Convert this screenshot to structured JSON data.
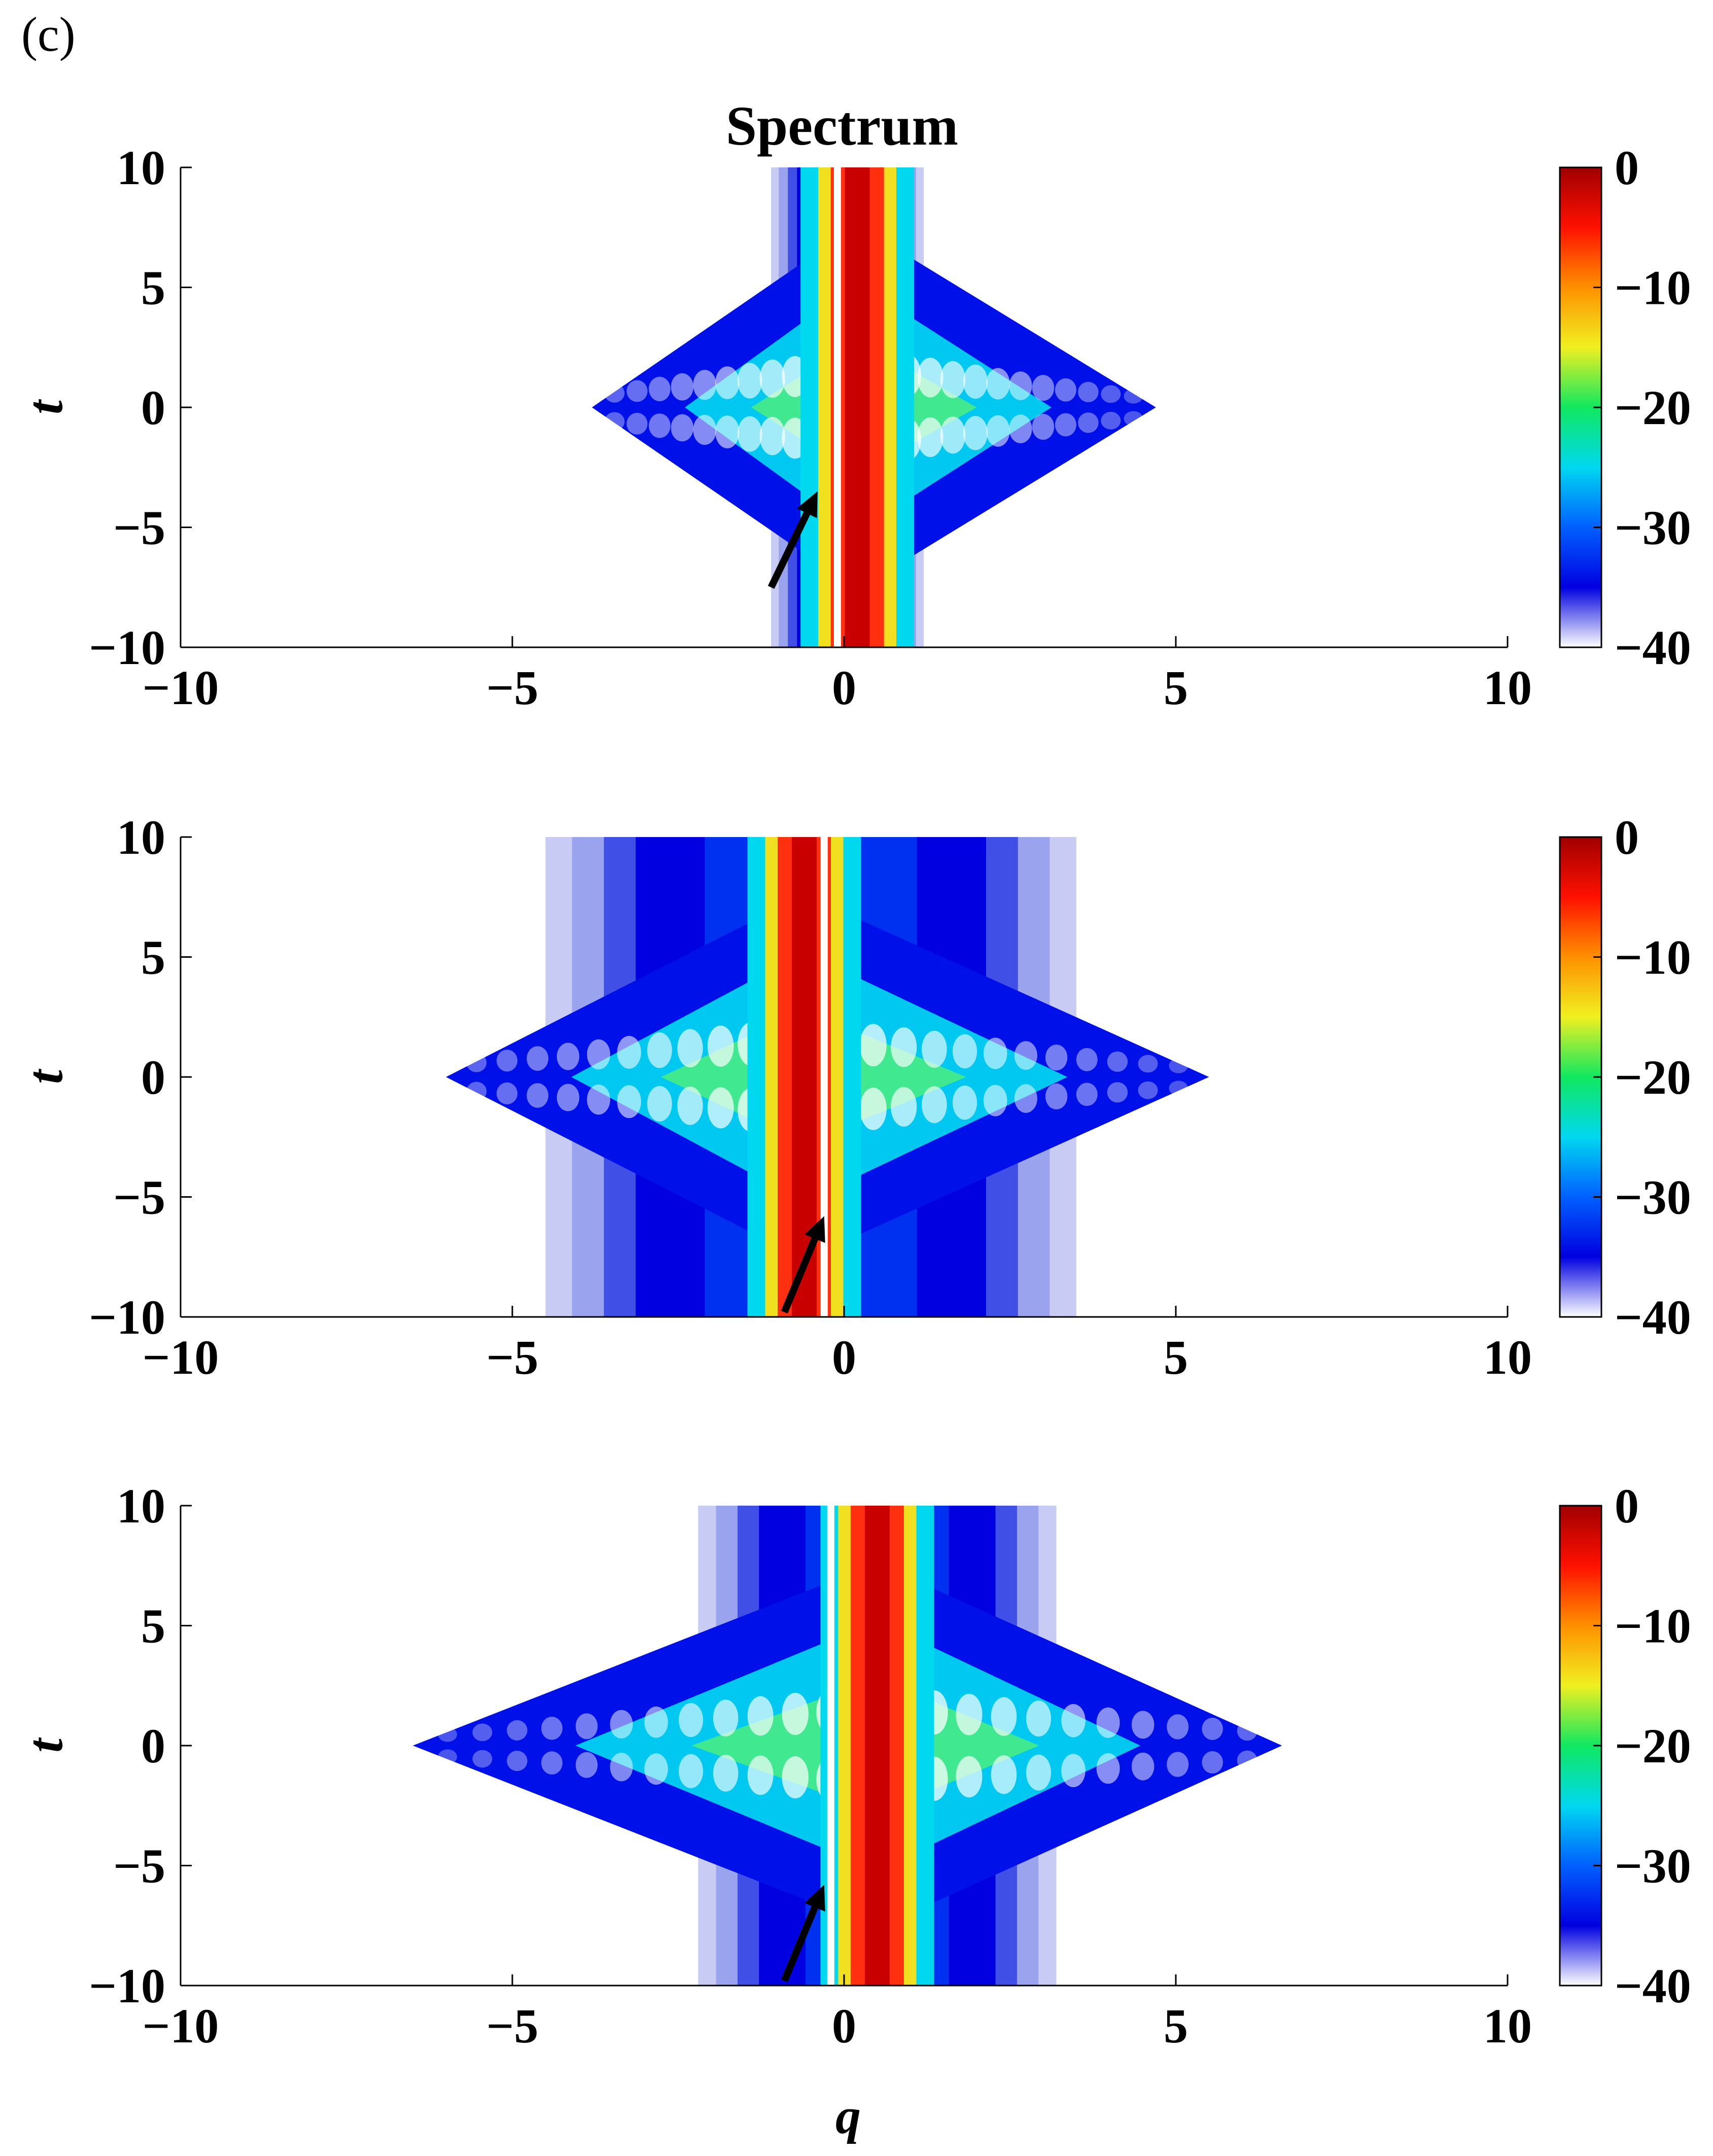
{
  "panel_label": "(c)",
  "title": "Spectrum",
  "colors": {
    "colormap": [
      "#ffffff",
      "#0000e0",
      "#0060ff",
      "#00d8f0",
      "#10e860",
      "#f0f020",
      "#ff9000",
      "#ff1000",
      "#a00000"
    ],
    "arrow": "#000000",
    "axis": "#000000"
  },
  "chart_data": [
    {
      "type": "heatmap",
      "title": "Spectrum",
      "xlabel": "",
      "ylabel": "t",
      "xlim": [
        -10,
        10
      ],
      "ylim": [
        -10,
        10
      ],
      "xticks": [
        "−10",
        "−5",
        "0",
        "5",
        "10"
      ],
      "yticks": [
        "10",
        "5",
        "0",
        "−5",
        "−10"
      ],
      "colorbar": {
        "range": [
          -40,
          0
        ],
        "ticks": [
          "0",
          "−10",
          "−20",
          "−30",
          "−40"
        ]
      },
      "features": {
        "central_band_q": 0.2,
        "gap_q": -0.1,
        "background_band_q": [
          -1.1,
          1.2
        ],
        "spread_at_t0_q": [
          -3.8,
          4.7
        ],
        "peak_t": 0
      },
      "arrow": {
        "from": [
          -1.1,
          -7.5
        ],
        "to": [
          -0.4,
          -3.5
        ]
      }
    },
    {
      "type": "heatmap",
      "xlabel": "",
      "ylabel": "t",
      "xlim": [
        -10,
        10
      ],
      "ylim": [
        -10,
        10
      ],
      "xticks": [
        "−10",
        "−5",
        "0",
        "5",
        "10"
      ],
      "yticks": [
        "10",
        "5",
        "0",
        "−5",
        "−10"
      ],
      "colorbar": {
        "range": [
          -40,
          0
        ],
        "ticks": [
          "0",
          "−10",
          "−20",
          "−30",
          "−40"
        ]
      },
      "features": {
        "central_band_q": -0.6,
        "gap_q": -0.3,
        "background_band_q": [
          -4.5,
          3.5
        ],
        "spread_at_t0_q": [
          -6.0,
          5.5
        ],
        "peak_t": 0
      },
      "arrow": {
        "from": [
          -0.9,
          -9.8
        ],
        "to": [
          -0.3,
          -5.8
        ]
      }
    },
    {
      "type": "heatmap",
      "xlabel": "q",
      "ylabel": "t",
      "xlim": [
        -10,
        10
      ],
      "ylim": [
        -10,
        10
      ],
      "xticks": [
        "−10",
        "−5",
        "0",
        "5",
        "10"
      ],
      "yticks": [
        "10",
        "5",
        "0",
        "−5",
        "−10"
      ],
      "colorbar": {
        "range": [
          -40,
          0
        ],
        "ticks": [
          "0",
          "−10",
          "−20",
          "−30",
          "−40"
        ]
      },
      "features": {
        "central_band_q": 0.5,
        "gap_q": -0.2,
        "background_band_q": [
          -2.2,
          3.2
        ],
        "spread_at_t0_q": [
          -6.5,
          6.6
        ],
        "peak_t": 0
      },
      "arrow": {
        "from": [
          -0.9,
          -9.8
        ],
        "to": [
          -0.3,
          -5.8
        ]
      }
    }
  ]
}
